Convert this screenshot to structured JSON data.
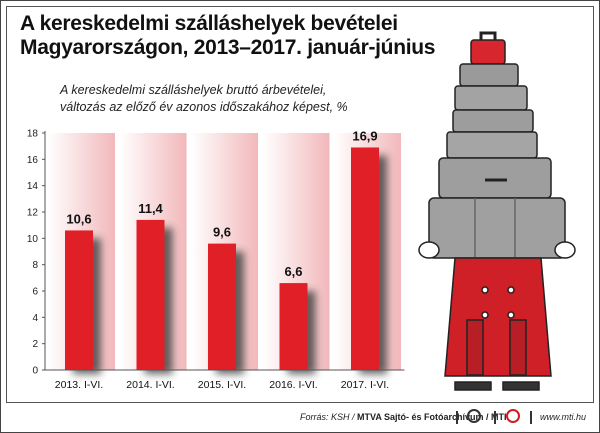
{
  "title_line1": "A kereskedelmi szálláshelyek bevételei",
  "title_line2": "Magyarországon, 2013–2017. január-június",
  "subtitle_line1": "A kereskedelmi szálláshelyek bruttó árbevételei,",
  "subtitle_line2": "változás az előző év azonos időszakához képest, %",
  "footer": {
    "source_prefix": "Forrás: KSH / ",
    "source_bold": "MTVA Sajtó- és Fotóarchívum / MTI",
    "website": "www.mti.hu",
    "logo1_text": "MTVA",
    "logo2_text": "MTI"
  },
  "colors": {
    "bar": "#e01f26",
    "band": "#f2b8bb"
  },
  "chart_data": {
    "type": "bar",
    "title": "A kereskedelmi szálláshelyek bevételei Magyarországon, 2013–2017. január-június",
    "categories": [
      "2013. I-VI.",
      "2014. I-VI.",
      "2015. I-VI.",
      "2016. I-VI.",
      "2017. I-VI."
    ],
    "values": [
      10.6,
      11.4,
      9.6,
      6.6,
      16.9
    ],
    "value_labels": [
      "10,6",
      "11,4",
      "9,6",
      "6,6",
      "16,9"
    ],
    "ylim": [
      0,
      18
    ],
    "yticks": [
      0,
      2,
      4,
      6,
      8,
      10,
      12,
      14,
      16,
      18
    ],
    "xlabel": "",
    "ylabel": "A kereskedelmi szálláshelyek bruttó árbevételei, változás az előző év azonos időszakához képest, %",
    "grid": false
  }
}
